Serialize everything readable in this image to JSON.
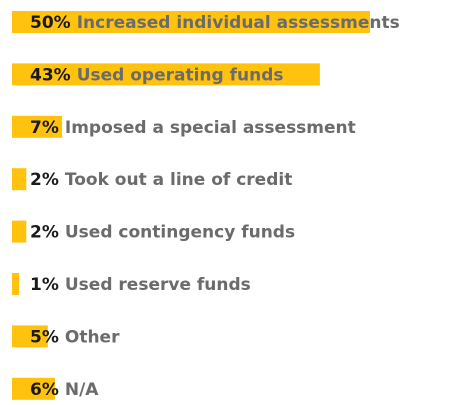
{
  "chart_data": {
    "type": "bar",
    "orientation": "horizontal",
    "categories": [
      "Increased individual assessments",
      "Used operating funds",
      "Imposed a special assessment",
      "Took out a line of credit",
      "Used contingency funds",
      "Used reserve funds",
      "Other",
      "N/A"
    ],
    "values": [
      50,
      43,
      7,
      2,
      2,
      1,
      5,
      6
    ],
    "value_labels": [
      "50%",
      "43%",
      "7%",
      "2%",
      "2%",
      "1%",
      "5%",
      "6%"
    ],
    "color": "#ffc20e"
  }
}
